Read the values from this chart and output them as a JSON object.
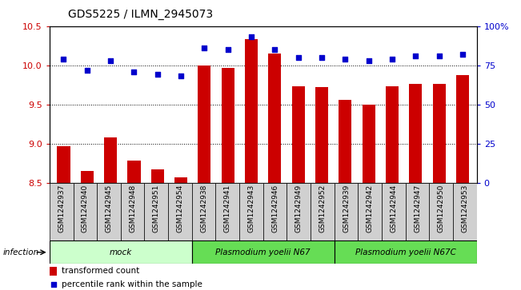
{
  "title": "GDS5225 / ILMN_2945073",
  "samples": [
    "GSM1242937",
    "GSM1242940",
    "GSM1242945",
    "GSM1242948",
    "GSM1242951",
    "GSM1242954",
    "GSM1242938",
    "GSM1242941",
    "GSM1242943",
    "GSM1242946",
    "GSM1242949",
    "GSM1242952",
    "GSM1242939",
    "GSM1242942",
    "GSM1242944",
    "GSM1242947",
    "GSM1242950",
    "GSM1242953"
  ],
  "transformed_count": [
    8.97,
    8.65,
    9.08,
    8.78,
    8.67,
    8.57,
    10.0,
    9.97,
    10.33,
    10.15,
    9.73,
    9.72,
    9.56,
    9.5,
    9.73,
    9.76,
    9.76,
    9.87
  ],
  "percentile_rank": [
    79,
    72,
    78,
    71,
    69,
    68,
    86,
    85,
    93,
    85,
    80,
    80,
    79,
    78,
    79,
    81,
    81,
    82
  ],
  "ylim_left": [
    8.5,
    10.5
  ],
  "ylim_right": [
    0,
    100
  ],
  "yticks_left": [
    8.5,
    9.0,
    9.5,
    10.0,
    10.5
  ],
  "yticks_right": [
    0,
    25,
    50,
    75,
    100
  ],
  "bar_color": "#cc0000",
  "dot_color": "#0000cc",
  "bar_bottom": 8.5,
  "groups": [
    {
      "label": "mock",
      "start": 0,
      "end": 6,
      "color": "#ccffcc"
    },
    {
      "label": "Plasmodium yoelii N67",
      "start": 6,
      "end": 12,
      "color": "#66dd55"
    },
    {
      "label": "Plasmodium yoelii N67C",
      "start": 12,
      "end": 18,
      "color": "#66dd55"
    }
  ],
  "group_row_label": "infection",
  "legend_items": [
    {
      "label": "transformed count",
      "color": "#cc0000"
    },
    {
      "label": "percentile rank within the sample",
      "color": "#0000cc"
    }
  ],
  "title_fontsize": 10,
  "axis_label_color_left": "#cc0000",
  "axis_label_color_right": "#0000cc",
  "sample_box_color": "#d0d0d0",
  "grid_ticks": [
    9.0,
    9.5,
    10.0
  ],
  "xlim": [
    -0.6,
    17.6
  ]
}
